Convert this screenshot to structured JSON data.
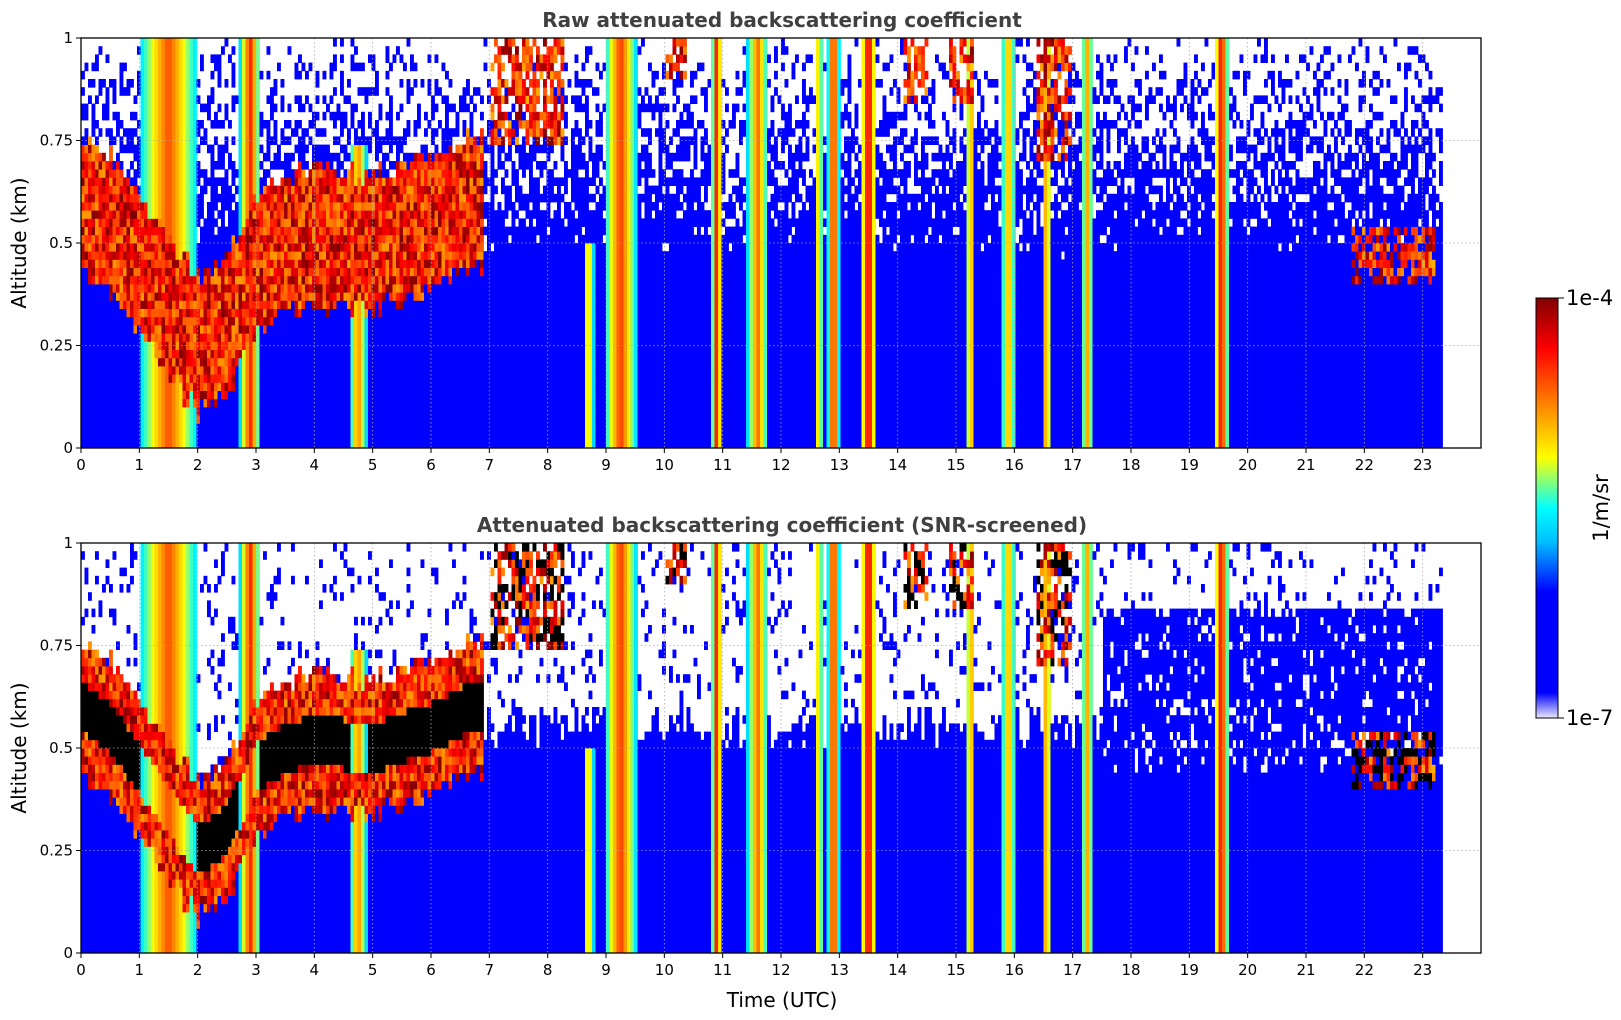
{
  "chart_data": [
    {
      "type": "heatmap",
      "title": "Raw attenuated backscattering coefficient",
      "xlabel": "",
      "ylabel": "Altitude (km)",
      "xlim": [
        0,
        24
      ],
      "ylim": [
        0,
        1
      ],
      "x_ticks": [
        "0",
        "1",
        "2",
        "3",
        "4",
        "5",
        "6",
        "7",
        "8",
        "9",
        "10",
        "11",
        "12",
        "13",
        "14",
        "15",
        "16",
        "17",
        "18",
        "19",
        "20",
        "21",
        "22",
        "23"
      ],
      "y_ticks": [
        "0",
        "0.25",
        "0.5",
        "0.75",
        "1"
      ],
      "grid": true,
      "data_extent_hours": [
        0,
        23.3
      ],
      "screened": false
    },
    {
      "type": "heatmap",
      "title": "Attenuated backscattering coefficient (SNR-screened)",
      "xlabel": "Time (UTC)",
      "ylabel": "Altitude (km)",
      "xlim": [
        0,
        24
      ],
      "ylim": [
        0,
        1
      ],
      "x_ticks": [
        "0",
        "1",
        "2",
        "3",
        "4",
        "5",
        "6",
        "7",
        "8",
        "9",
        "10",
        "11",
        "12",
        "13",
        "14",
        "15",
        "16",
        "17",
        "18",
        "19",
        "20",
        "21",
        "22",
        "23"
      ],
      "y_ticks": [
        "0",
        "0.25",
        "0.5",
        "0.75",
        "1"
      ],
      "grid": true,
      "data_extent_hours": [
        0,
        23.3
      ],
      "screened": true
    }
  ],
  "colorbar": {
    "label": "1/m/sr",
    "max_label": "1e-4",
    "min_label": "1e-7",
    "colormap": "jet",
    "colors": [
      "#e8e8ff",
      "#0000ff",
      "#00bfff",
      "#00ffff",
      "#ffff00",
      "#ff8000",
      "#ff0000",
      "#800000"
    ]
  },
  "features": {
    "precip_columns": [
      {
        "t": 1.5,
        "w": 1.0,
        "strength": 0.65,
        "top": 1.0
      },
      {
        "t": 2.9,
        "w": 0.35,
        "strength": 0.75,
        "top": 1.0
      },
      {
        "t": 4.75,
        "w": 0.28,
        "strength": 0.55,
        "top": 0.75
      },
      {
        "t": 8.7,
        "w": 0.18,
        "strength": 0.45,
        "top": 0.5
      },
      {
        "t": 9.25,
        "w": 0.55,
        "strength": 0.7,
        "top": 1.0
      },
      {
        "t": 10.9,
        "w": 0.18,
        "strength": 0.8,
        "top": 1.0
      },
      {
        "t": 11.6,
        "w": 0.35,
        "strength": 0.6,
        "top": 1.0
      },
      {
        "t": 12.65,
        "w": 0.12,
        "strength": 0.5,
        "top": 1.0
      },
      {
        "t": 12.9,
        "w": 0.2,
        "strength": 0.8,
        "top": 1.0
      },
      {
        "t": 13.5,
        "w": 0.28,
        "strength": 0.9,
        "top": 1.0
      },
      {
        "t": 15.25,
        "w": 0.15,
        "strength": 0.55,
        "top": 1.0
      },
      {
        "t": 15.9,
        "w": 0.25,
        "strength": 0.5,
        "top": 1.0
      },
      {
        "t": 16.55,
        "w": 0.15,
        "strength": 0.6,
        "top": 1.0
      },
      {
        "t": 17.25,
        "w": 0.2,
        "strength": 0.45,
        "top": 1.0
      },
      {
        "t": 19.55,
        "w": 0.25,
        "strength": 0.85,
        "top": 1.0
      }
    ],
    "cloud_layer": [
      {
        "t": 0.0,
        "alt": 0.6
      },
      {
        "t": 0.5,
        "alt": 0.55
      },
      {
        "t": 1.0,
        "alt": 0.45
      },
      {
        "t": 1.5,
        "alt": 0.35
      },
      {
        "t": 2.0,
        "alt": 0.25
      },
      {
        "t": 2.5,
        "alt": 0.3
      },
      {
        "t": 3.0,
        "alt": 0.45
      },
      {
        "t": 3.5,
        "alt": 0.5
      },
      {
        "t": 4.0,
        "alt": 0.52
      },
      {
        "t": 5.0,
        "alt": 0.5
      },
      {
        "t": 6.0,
        "alt": 0.55
      },
      {
        "t": 6.7,
        "alt": 0.6
      }
    ]
  }
}
